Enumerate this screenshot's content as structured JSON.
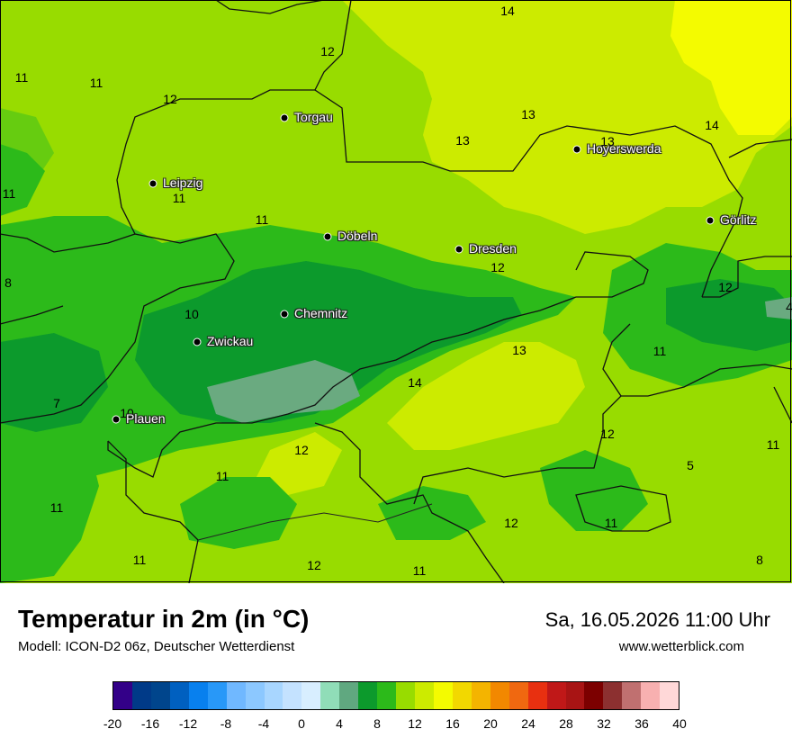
{
  "map": {
    "cities": [
      {
        "name": "Torgau"
      },
      {
        "name": "Hoyerswerda"
      },
      {
        "name": "Leipzig"
      },
      {
        "name": "Görlitz"
      },
      {
        "name": "Döbeln"
      },
      {
        "name": "Dresden"
      },
      {
        "name": "Chemnitz"
      },
      {
        "name": "Zwickau"
      },
      {
        "name": "Plauen"
      }
    ],
    "temperature_labels": [
      "14",
      "12",
      "11",
      "11",
      "12",
      "13",
      "13",
      "13",
      "14",
      "11",
      "11",
      "11",
      "8",
      "12",
      "12",
      "10",
      "13",
      "11",
      "7",
      "14",
      "10",
      "12",
      "11",
      "11",
      "12",
      "5",
      "11",
      "12",
      "11",
      "12",
      "11",
      "11",
      "8",
      "4"
    ],
    "colors": {
      "green_dark": "#0c9a2c",
      "green": "#2cba1a",
      "green_mid": "#66cc10",
      "green_light": "#98dc00",
      "yellow_green": "#cceb00",
      "yellow": "#f4fb00",
      "mint": "#6aaa80"
    }
  },
  "footer": {
    "title": "Temperatur in 2m (in °C)",
    "model": "Modell: ICON-D2 06z, Deutscher Wetterdienst",
    "datetime": "Sa, 16.05.2026 11:00 Uhr",
    "website": "www.wetterblick.com"
  },
  "legend": {
    "ticks": [
      "-20",
      "-16",
      "-12",
      "-8",
      "-4",
      "0",
      "4",
      "8",
      "12",
      "16",
      "20",
      "24",
      "28",
      "32",
      "36",
      "40"
    ],
    "colors": [
      "#330088",
      "#003a88",
      "#00458c",
      "#0060c0",
      "#0880ee",
      "#2898f8",
      "#70b8ff",
      "#8cc8ff",
      "#a8d6ff",
      "#c4e2ff",
      "#d8eeff",
      "#90ddb8",
      "#60a880",
      "#0c9a2c",
      "#2cba1a",
      "#98dc00",
      "#cceb00",
      "#f4fb00",
      "#f2d800",
      "#f4b400",
      "#f28800",
      "#f06810",
      "#e83010",
      "#c01818",
      "#a81414",
      "#7c0000",
      "#8c3030",
      "#c07070",
      "#f8b0b0",
      "#ffd8d8"
    ]
  }
}
